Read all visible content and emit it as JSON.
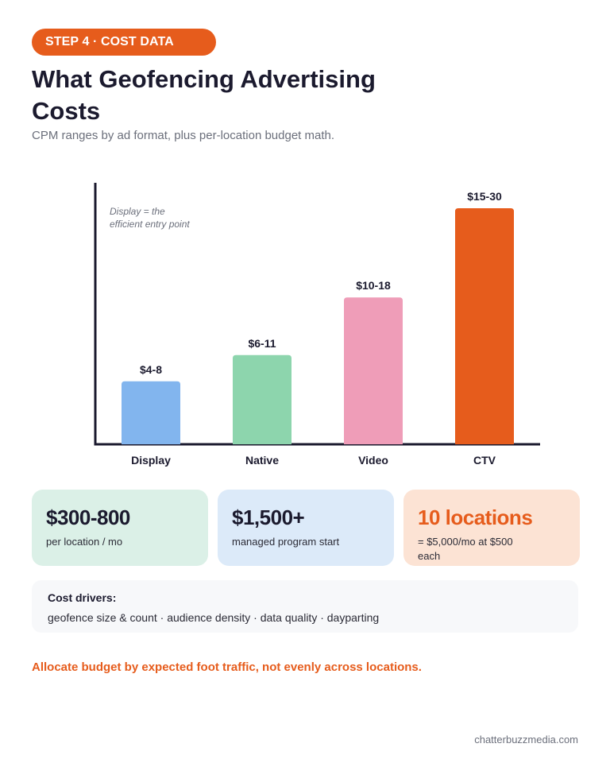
{
  "header": {
    "badge": "STEP 4 · COST DATA",
    "title": "What Geofencing Advertising Costs",
    "subtitle": "CPM ranges by ad format, plus per-location budget math."
  },
  "chart_data": {
    "type": "bar",
    "categories": [
      "Display",
      "Native",
      "Video",
      "CTV"
    ],
    "value_labels": [
      "$4-8",
      "$6-11",
      "$10-18",
      "$15-30"
    ],
    "ranges": [
      [
        4,
        8
      ],
      [
        6,
        11
      ],
      [
        10,
        18
      ],
      [
        15,
        30
      ]
    ],
    "values": [
      6,
      8.5,
      14,
      22.5
    ],
    "colors": [
      "#82b5ee",
      "#8dd5ad",
      "#ef9db8",
      "#e65c1c"
    ],
    "annotation": "Display = the efficient entry point",
    "annotation_lines": [
      "Display = the",
      "efficient entry point"
    ],
    "ylim": [
      0,
      25
    ],
    "grid": false,
    "legend": "none"
  },
  "cards": [
    {
      "value": "$300-800",
      "note": "per location / mo",
      "bg": "#dbf0e7",
      "value_color": "#1b1a2e"
    },
    {
      "value": "$1,500+",
      "note": "managed program start",
      "bg": "#dceaf9",
      "value_color": "#1b1a2e"
    },
    {
      "value": "10 locations",
      "note": "= $5,000/mo at $500 each",
      "bg": "#fce3d4",
      "value_color": "#e65c1c"
    }
  ],
  "drivers": {
    "title": "Cost drivers:",
    "text": "geofence size & count · audience density · data quality · dayparting"
  },
  "tip": "Allocate budget by expected foot traffic, not evenly across locations.",
  "footer": "chatterbuzzmedia.com"
}
